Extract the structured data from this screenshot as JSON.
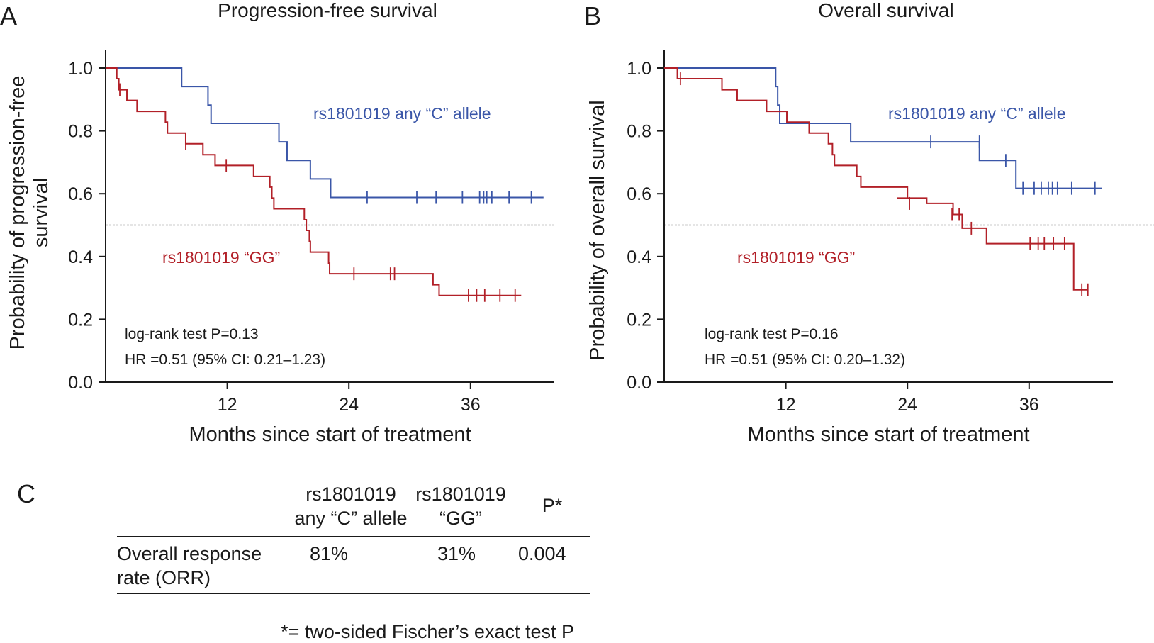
{
  "chart_data": [
    {
      "panel": "A",
      "type": "line",
      "title": "Progression-free survival",
      "xlabel": "Months since start of treatment",
      "ylabel": "Probability of progression-free survival",
      "xlim": [
        0,
        44.5
      ],
      "ylim": [
        0,
        1.05
      ],
      "xticks": [
        12,
        24,
        36
      ],
      "yticks": [
        0.0,
        0.2,
        0.4,
        0.6,
        0.8,
        1.0
      ],
      "ytick_labels": [
        "0.0",
        "0.2",
        "0.4",
        "0.6",
        "0.8",
        "1.0"
      ],
      "reference_line": 0.5,
      "series": [
        {
          "name": "rs1801019 any “C” allele",
          "color": "#3a56a8",
          "steps": [
            [
              0,
              1.0
            ],
            [
              7.5,
              0.941
            ],
            [
              10.1,
              0.882
            ],
            [
              10.4,
              0.824
            ],
            [
              17.1,
              0.765
            ],
            [
              17.9,
              0.706
            ],
            [
              20.2,
              0.647
            ],
            [
              22.2,
              0.588
            ],
            [
              43.2,
              0.588
            ]
          ],
          "censored": [
            [
              25.8,
              0.588
            ],
            [
              30.7,
              0.588
            ],
            [
              32.6,
              0.588
            ],
            [
              35.2,
              0.588
            ],
            [
              36.9,
              0.588
            ],
            [
              37.3,
              0.588
            ],
            [
              37.6,
              0.588
            ],
            [
              38.1,
              0.588
            ],
            [
              39.8,
              0.588
            ],
            [
              42.0,
              0.588
            ]
          ]
        },
        {
          "name": "rs1801019 “GG”",
          "color": "#b22028",
          "steps": [
            [
              0,
              1.0
            ],
            [
              1.1,
              0.966
            ],
            [
              1.3,
              0.931
            ],
            [
              2.1,
              0.897
            ],
            [
              3.1,
              0.862
            ],
            [
              5.9,
              0.828
            ],
            [
              6.1,
              0.793
            ],
            [
              7.9,
              0.759
            ],
            [
              9.6,
              0.724
            ],
            [
              10.8,
              0.69
            ],
            [
              11.2,
              0.69
            ],
            [
              14.6,
              0.655
            ],
            [
              16.2,
              0.621
            ],
            [
              16.4,
              0.586
            ],
            [
              16.6,
              0.552
            ],
            [
              19.6,
              0.517
            ],
            [
              19.8,
              0.483
            ],
            [
              20.1,
              0.448
            ],
            [
              20.2,
              0.414
            ],
            [
              22.0,
              0.379
            ],
            [
              22.1,
              0.345
            ],
            [
              22.4,
              0.345
            ],
            [
              31.5,
              0.345
            ],
            [
              32.3,
              0.31
            ],
            [
              32.9,
              0.276
            ],
            [
              41.0,
              0.276
            ]
          ],
          "censored": [
            [
              1.4,
              0.931
            ],
            [
              7.9,
              0.759
            ],
            [
              11.9,
              0.69
            ],
            [
              24.5,
              0.345
            ],
            [
              28.1,
              0.345
            ],
            [
              28.5,
              0.345
            ],
            [
              35.8,
              0.276
            ],
            [
              36.6,
              0.276
            ],
            [
              37.4,
              0.276
            ],
            [
              38.9,
              0.276
            ],
            [
              40.4,
              0.276
            ]
          ]
        }
      ],
      "annotations": [
        "log-rank test P=0.13",
        "HR =0.51 (95% CI: 0.21–1.23)"
      ]
    },
    {
      "panel": "B",
      "type": "line",
      "title": "Overall survival",
      "xlabel": "Months since start of treatment",
      "ylabel": "Probability of overall survival",
      "xlim": [
        0,
        44.5
      ],
      "ylim": [
        0,
        1.05
      ],
      "xticks": [
        12,
        24,
        36
      ],
      "yticks": [
        0.0,
        0.2,
        0.4,
        0.6,
        0.8,
        1.0
      ],
      "ytick_labels": [
        "0.0",
        "0.2",
        "0.4",
        "0.6",
        "0.8",
        "1.0"
      ],
      "reference_line": 0.5,
      "series": [
        {
          "name": "rs1801019 any “C” allele",
          "color": "#3a56a8",
          "steps": [
            [
              0,
              1.0
            ],
            [
              11.0,
              0.941
            ],
            [
              11.2,
              0.882
            ],
            [
              11.4,
              0.824
            ],
            [
              11.7,
              0.824
            ],
            [
              18.4,
              0.765
            ],
            [
              31.1,
              0.706
            ],
            [
              34.7,
              0.617
            ],
            [
              43.2,
              0.617
            ]
          ],
          "censored": [
            [
              26.3,
              0.765
            ],
            [
              31.1,
              0.765
            ],
            [
              33.7,
              0.706
            ],
            [
              35.4,
              0.617
            ],
            [
              36.5,
              0.617
            ],
            [
              37.2,
              0.617
            ],
            [
              37.9,
              0.617
            ],
            [
              38.3,
              0.617
            ],
            [
              38.8,
              0.617
            ],
            [
              40.2,
              0.617
            ],
            [
              42.5,
              0.617
            ]
          ]
        },
        {
          "name": "rs1801019 “GG”",
          "color": "#b22028",
          "steps": [
            [
              0,
              1.0
            ],
            [
              1.3,
              0.966
            ],
            [
              5.7,
              0.931
            ],
            [
              7.2,
              0.897
            ],
            [
              10.1,
              0.862
            ],
            [
              12.1,
              0.828
            ],
            [
              14.3,
              0.793
            ],
            [
              16.2,
              0.759
            ],
            [
              16.6,
              0.724
            ],
            [
              16.8,
              0.69
            ],
            [
              19.0,
              0.655
            ],
            [
              19.4,
              0.621
            ],
            [
              24.0,
              0.586
            ],
            [
              23.0,
              0.586
            ],
            [
              25.9,
              0.569
            ],
            [
              28.5,
              0.534
            ],
            [
              29.4,
              0.49
            ],
            [
              31.6,
              0.49
            ],
            [
              31.8,
              0.441
            ],
            [
              40.0,
              0.441
            ],
            [
              40.4,
              0.294
            ],
            [
              41.7,
              0.294
            ]
          ],
          "censored": [
            [
              1.6,
              0.966
            ],
            [
              24.2,
              0.569
            ],
            [
              28.4,
              0.534
            ],
            [
              29.1,
              0.534
            ],
            [
              30.3,
              0.49
            ],
            [
              36.1,
              0.441
            ],
            [
              36.9,
              0.441
            ],
            [
              37.5,
              0.441
            ],
            [
              38.4,
              0.441
            ],
            [
              39.5,
              0.441
            ],
            [
              41.2,
              0.294
            ],
            [
              41.8,
              0.294
            ]
          ]
        }
      ],
      "annotations": [
        "log-rank test P=0.16",
        "HR =0.51 (95% CI: 0.20–1.32)"
      ]
    },
    {
      "panel": "C",
      "type": "table",
      "columns": [
        "",
        "rs1801019 any “C” allele",
        "rs1801019 “GG”",
        "P*"
      ],
      "rows": [
        {
          "label": "Overall response rate (ORR)",
          "values": [
            "81%",
            "31%",
            "0.004"
          ]
        }
      ],
      "footnote": "*= two-sided Fischer’s exact test P"
    }
  ],
  "table_view": {
    "header": {
      "col1_line1": "rs1801019",
      "col1_line2": "any “C” allele",
      "col2_line1": "rs1801019",
      "col2_line2": "“GG”",
      "col3": "P*"
    },
    "row_label_line1": "Overall response",
    "row_label_line2": "rate (ORR)",
    "cell1": "81%",
    "cell2": "31%",
    "cell3": "0.004",
    "footnote": "*= two-sided Fischer’s exact test P"
  },
  "panel_letters": [
    "A",
    "B",
    "C"
  ],
  "ylabel_a_lines": [
    "Probability of progression-free",
    "survival"
  ]
}
